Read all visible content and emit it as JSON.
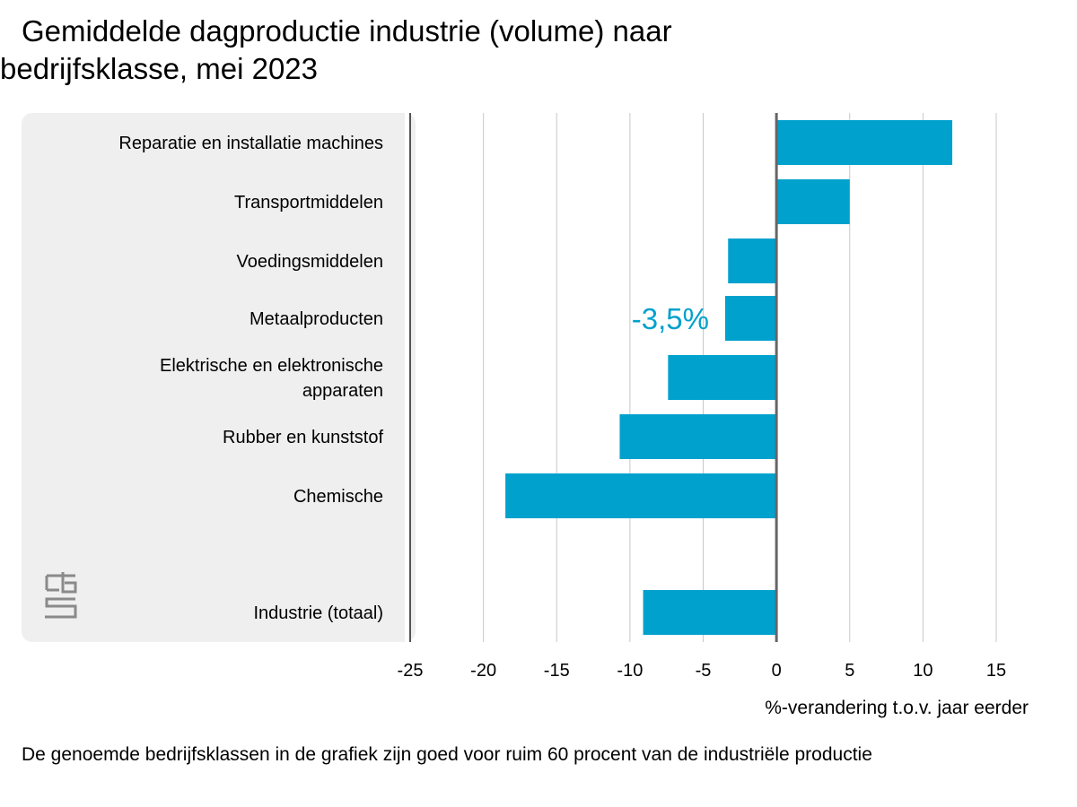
{
  "title_line1": "Gemiddelde dagproductie industrie (volume) naar",
  "title_line2": "bedrijfsklasse, mei 2023",
  "chart_data": {
    "type": "bar",
    "orientation": "horizontal",
    "categories": [
      "Reparatie en installatie machines",
      "Transportmiddelen",
      "Voedingsmiddelen",
      "Metaalproducten",
      "Elektrische en elektronische apparaten",
      "Rubber en kunststof",
      "Chemische",
      "Industrie (totaal)"
    ],
    "category_lines": [
      [
        "Reparatie en installatie machines"
      ],
      [
        "Transportmiddelen"
      ],
      [
        "Voedingsmiddelen"
      ],
      [
        "Metaalproducten"
      ],
      [
        "Elektrische en elektronische",
        "apparaten"
      ],
      [
        "Rubber en kunststof"
      ],
      [
        "Chemische"
      ],
      [
        "Industrie (totaal)"
      ]
    ],
    "values": [
      12.0,
      5.0,
      -3.3,
      -3.5,
      -7.4,
      -10.7,
      -18.5,
      -9.1
    ],
    "xlim": [
      -25,
      15
    ],
    "xticks": [
      -25,
      -20,
      -15,
      -10,
      -5,
      0,
      5,
      10,
      15
    ],
    "xtick_labels": [
      "-25",
      "-20",
      "-15",
      "-10",
      "-5",
      "0",
      "5",
      "10",
      "15"
    ],
    "xlabel": "%-verandering t.o.v. jaar eerder",
    "annotation": {
      "text": "-3,5%",
      "category": "Metaalproducten"
    },
    "grid": "vertical",
    "bar_color": "#00a1cd",
    "annotation_color": "#00a1cd",
    "label_panel_color": "#efefef",
    "zero_line_color": "#666666"
  },
  "logo": "cbs-logo",
  "footnote": "De genoemde bedrijfsklassen in de grafiek zijn goed voor ruim 60 procent van de industriële productie"
}
